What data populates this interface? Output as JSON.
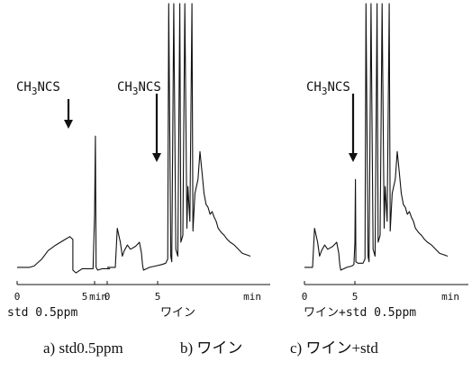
{
  "chart_data": [
    {
      "type": "line",
      "compound_label": "CH3NCS",
      "x_ticks": [
        "0",
        "5",
        "min"
      ],
      "sample_label": "std 0.5ppm",
      "x": [
        0,
        0.3,
        0.8,
        1.1,
        1.6,
        2.0,
        2.5,
        3.1,
        3.4,
        3.6,
        3.6,
        3.8,
        4.2,
        4.6,
        4.9,
        5.0,
        5.05,
        5.1,
        5.2,
        5.5,
        6.0
      ],
      "y": [
        2,
        2,
        2,
        3,
        8,
        14,
        18,
        22,
        24,
        22,
        0,
        -2,
        1,
        1,
        1,
        40,
        96,
        2,
        0,
        1,
        1
      ]
    },
    {
      "type": "line",
      "compound_label": "CH3NCS",
      "x_ticks": [
        "0",
        "5",
        "min"
      ],
      "sample_label": "ワイン",
      "x": [
        0,
        0.8,
        1.0,
        1.3,
        1.5,
        1.7,
        2.0,
        2.3,
        2.8,
        3.2,
        3.4,
        3.5,
        3.6,
        4.2,
        4.8,
        5.4,
        5.8,
        6.0,
        6.1,
        6.3,
        6.4,
        6.6,
        6.8,
        7.0,
        7.2,
        7.3,
        7.5,
        7.7,
        7.9,
        8.0,
        8.2,
        8.4,
        8.5,
        8.7,
        9.0,
        9.2,
        9.4,
        9.6,
        9.8,
        10.0,
        10.2,
        10.4,
        10.6,
        10.8,
        11.0,
        11.3,
        11.6,
        11.9,
        12.2,
        12.6,
        13.0,
        13.4,
        13.8,
        14.2
      ],
      "y": [
        2,
        2,
        30,
        20,
        10,
        14,
        18,
        15,
        17,
        20,
        12,
        4,
        0,
        2,
        3,
        4,
        5,
        8,
        200,
        10,
        6,
        200,
        15,
        10,
        200,
        20,
        25,
        200,
        30,
        60,
        35,
        200,
        28,
        55,
        65,
        85,
        70,
        55,
        47,
        45,
        40,
        42,
        38,
        35,
        30,
        27,
        25,
        22,
        20,
        18,
        15,
        12,
        11,
        10
      ]
    },
    {
      "type": "line",
      "compound_label": "CH3NCS",
      "x_ticks": [
        "0",
        "5",
        "min"
      ],
      "sample_label": "ワイン+std 0.5ppm",
      "x": [
        0,
        0.8,
        1.0,
        1.3,
        1.5,
        1.7,
        2.0,
        2.3,
        2.8,
        3.2,
        3.4,
        3.5,
        3.6,
        4.2,
        4.7,
        4.9,
        5.0,
        5.05,
        5.1,
        5.3,
        5.8,
        6.0,
        6.1,
        6.3,
        6.4,
        6.6,
        6.8,
        7.0,
        7.2,
        7.3,
        7.5,
        7.7,
        7.9,
        8.0,
        8.2,
        8.4,
        8.5,
        8.7,
        9.0,
        9.2,
        9.4,
        9.6,
        9.8,
        10.0,
        10.2,
        10.4,
        10.6,
        10.8,
        11.0,
        11.3,
        11.6,
        11.9,
        12.2,
        12.6,
        13.0,
        13.4,
        13.8,
        14.2
      ],
      "y": [
        2,
        2,
        30,
        20,
        10,
        14,
        18,
        15,
        17,
        20,
        12,
        4,
        0,
        2,
        3,
        4,
        20,
        65,
        6,
        5,
        5,
        8,
        200,
        10,
        6,
        200,
        15,
        10,
        200,
        20,
        25,
        200,
        30,
        60,
        35,
        200,
        28,
        55,
        65,
        85,
        70,
        55,
        47,
        45,
        40,
        42,
        38,
        35,
        30,
        27,
        25,
        22,
        20,
        18,
        15,
        12,
        11,
        10
      ]
    }
  ],
  "caption": {
    "a": "a) std0.5ppm",
    "b": "b) ワイン",
    "c": "c) ワイン+std"
  }
}
